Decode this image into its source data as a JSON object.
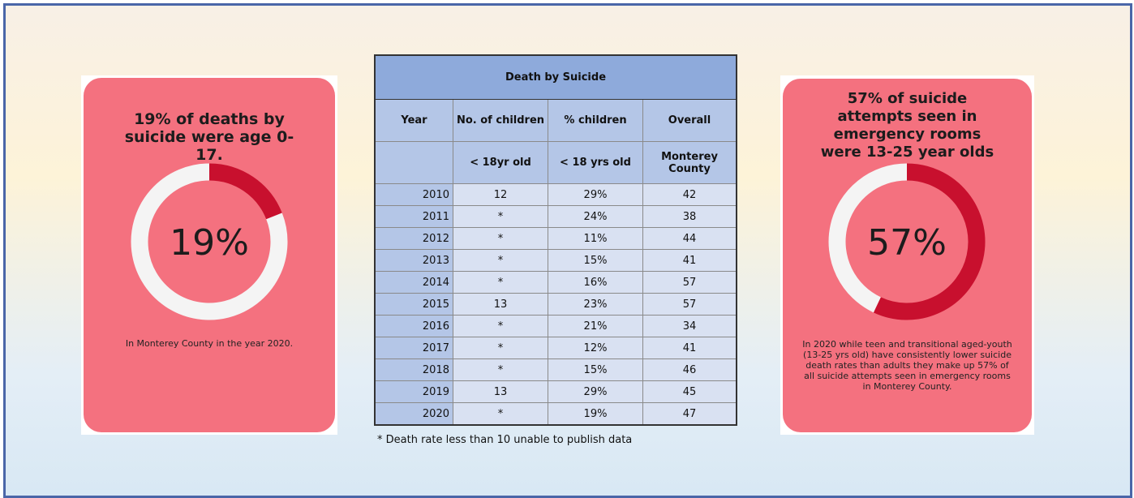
{
  "chart_data": [
    {
      "type": "donut",
      "title": "19% of deaths by suicide were age 0-17.",
      "values": [
        19,
        81
      ],
      "value_labels": [
        "19%",
        null
      ],
      "colors": [
        "#c8102e",
        "#f4f4f4"
      ],
      "caption": "In Monterey County in the year 2020."
    },
    {
      "type": "donut",
      "title": "57% of suicide attempts seen in emergency rooms were 13-25 year olds",
      "values": [
        57,
        43
      ],
      "value_labels": [
        "57%",
        null
      ],
      "colors": [
        "#c8102e",
        "#f4f4f4"
      ],
      "caption": "In 2020 while teen and transitional aged-youth (13-25 yrs old) have consistently lower suicide death rates than adults they make up 57% of all suicide attempts seen in emergency rooms in Monterey County."
    }
  ],
  "table": {
    "title": "Death by Suicide",
    "header": [
      "Year",
      "No. of children",
      "% children",
      "Overall"
    ],
    "subheader": [
      null,
      "< 18yr old",
      "< 18 yrs old",
      "Monterey County"
    ],
    "rows": [
      [
        "2010",
        "12",
        "29%",
        "42"
      ],
      [
        "2011",
        "*",
        "24%",
        "38"
      ],
      [
        "2012",
        "*",
        "11%",
        "44"
      ],
      [
        "2013",
        "*",
        "15%",
        "41"
      ],
      [
        "2014",
        "*",
        "16%",
        "57"
      ],
      [
        "2015",
        "13",
        "23%",
        "57"
      ],
      [
        "2016",
        "*",
        "21%",
        "34"
      ],
      [
        "2017",
        "*",
        "12%",
        "41"
      ],
      [
        "2018",
        "*",
        "15%",
        "46"
      ],
      [
        "2019",
        "13",
        "29%",
        "45"
      ],
      [
        "2020",
        "*",
        "19%",
        "47"
      ]
    ],
    "footnote": "* Death rate less than 10 unable to publish data"
  }
}
